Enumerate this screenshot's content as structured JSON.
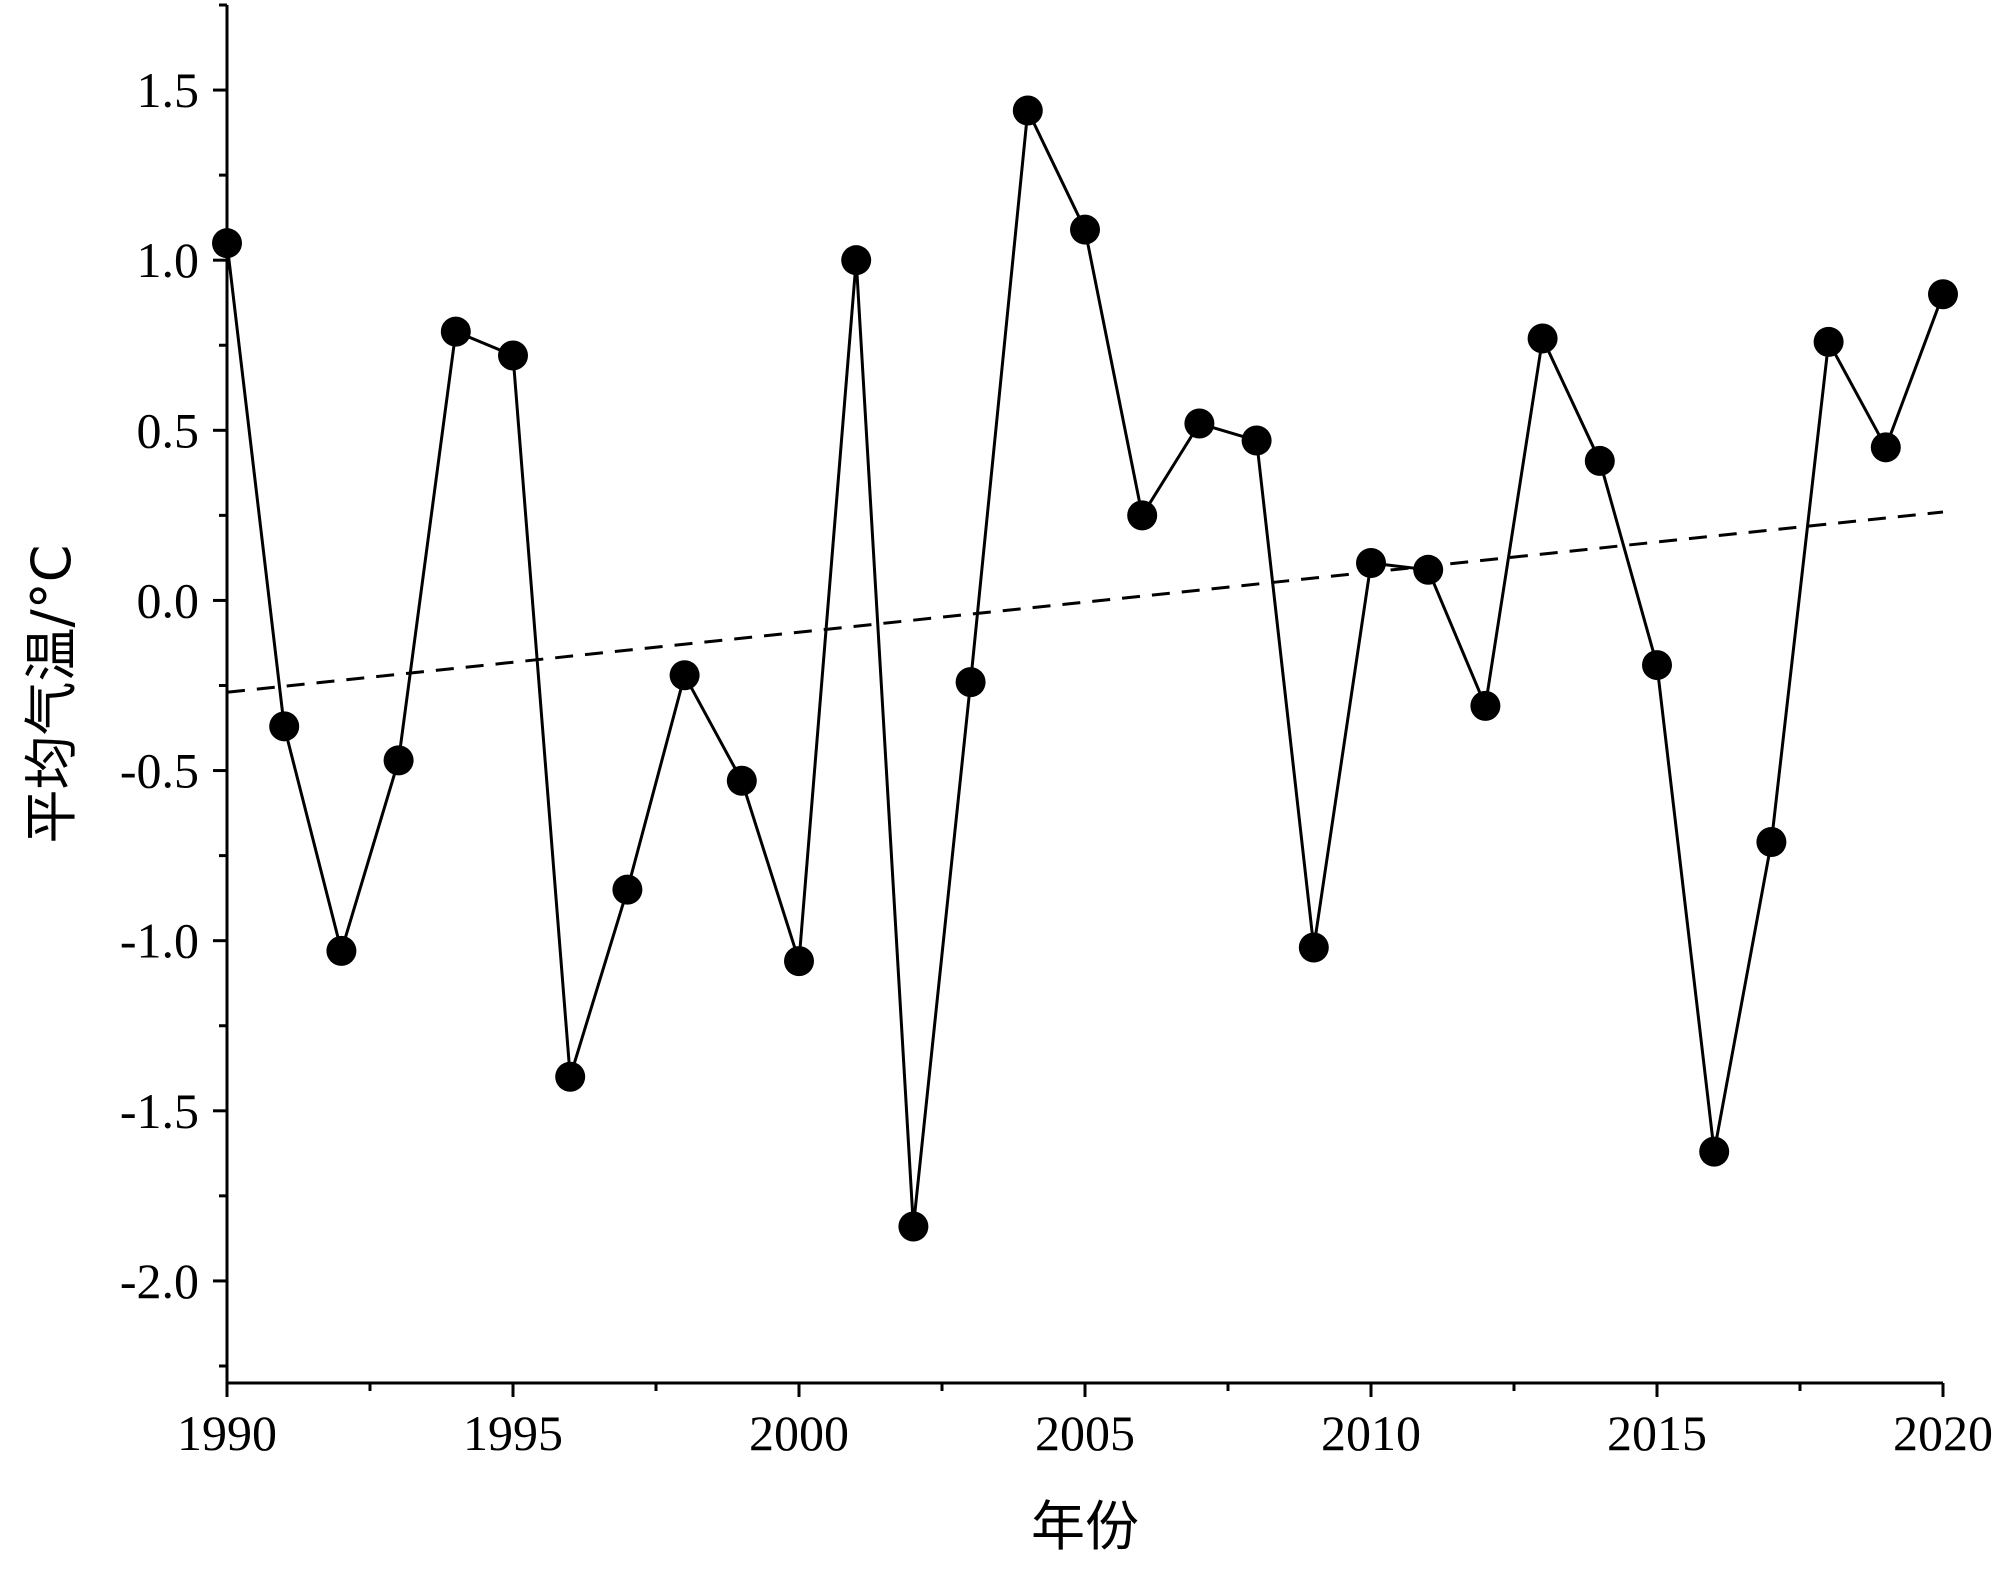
{
  "chart_data": {
    "type": "line",
    "title": "",
    "xlabel": "年份",
    "ylabel": "平均气温/°C",
    "xlim": [
      1990,
      2020
    ],
    "ylim": [
      -2.3,
      1.75
    ],
    "x_ticks": [
      1990,
      1995,
      2000,
      2005,
      2010,
      2015,
      2020
    ],
    "x_tick_labels": [
      "1990",
      "1995",
      "2000",
      "2005",
      "2010",
      "2015",
      "2020"
    ],
    "y_ticks": [
      -2.0,
      -1.5,
      -1.0,
      -0.5,
      0.0,
      0.5,
      1.0,
      1.5
    ],
    "y_tick_labels": [
      "-2.0",
      "-1.5",
      "-1.0",
      "-0.5",
      "0.0",
      "0.5",
      "1.0",
      "1.5"
    ],
    "grid": false,
    "legend": "none",
    "series": [
      {
        "style": "solid-line-with-filled-circles",
        "color": "#000000",
        "x": [
          1990,
          1991,
          1992,
          1993,
          1994,
          1995,
          1996,
          1997,
          1998,
          1999,
          2000,
          2001,
          2002,
          2003,
          2004,
          2005,
          2006,
          2007,
          2008,
          2009,
          2010,
          2011,
          2012,
          2013,
          2014,
          2015,
          2016,
          2017,
          2018,
          2019,
          2020
        ],
        "values": [
          1.05,
          -0.37,
          -1.03,
          -0.47,
          0.79,
          0.72,
          -1.4,
          -0.85,
          -0.22,
          -0.53,
          -1.06,
          1.0,
          -1.84,
          -0.24,
          1.44,
          1.09,
          0.25,
          0.52,
          0.47,
          -1.02,
          0.11,
          0.09,
          -0.31,
          0.77,
          0.41,
          -0.19,
          -1.62,
          -0.71,
          0.76,
          0.45,
          0.9
        ]
      },
      {
        "style": "dashed-trend-line",
        "color": "#000000",
        "x": [
          1990,
          2020
        ],
        "values": [
          -0.27,
          0.26
        ]
      }
    ]
  }
}
